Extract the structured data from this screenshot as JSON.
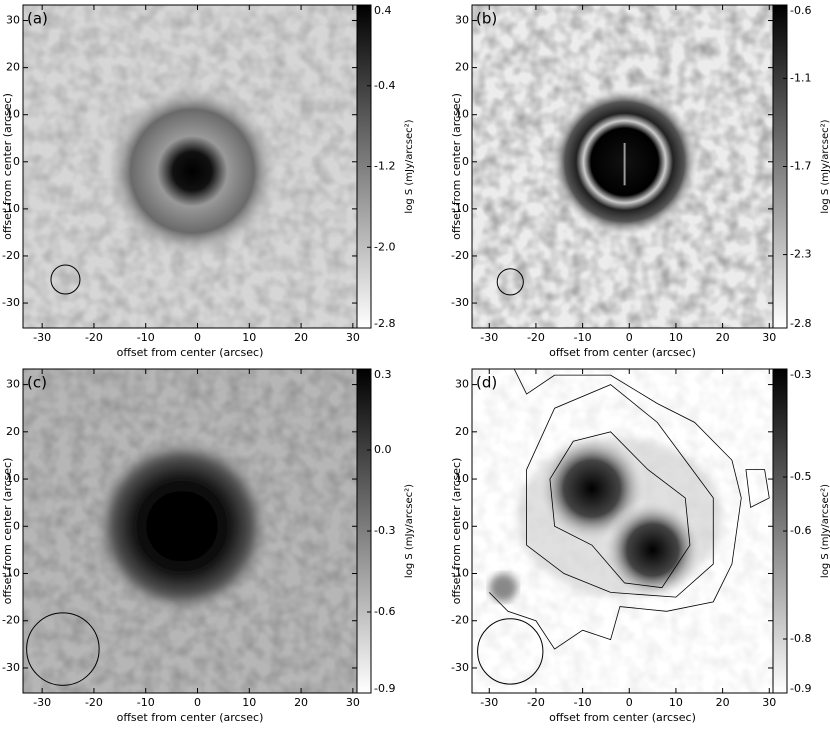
{
  "chart_data": [
    {
      "type": "image",
      "title": "(a)",
      "xlabel": "offset from center (arcsec)",
      "ylabel": "offset from center (arcsec)",
      "xlim": [
        -33.7,
        30.8
      ],
      "ylim": [
        -35.3,
        33.3
      ],
      "xticks": [
        -30,
        -20,
        -10,
        0,
        10,
        20,
        30
      ],
      "yticks": [
        -30,
        -20,
        -10,
        0,
        10,
        20,
        30
      ],
      "colorbar_label": "log S (mJy/arcsec²)",
      "clim": [
        -2.8,
        0.4
      ],
      "cticks": [
        0.4,
        -0.4,
        -1.2,
        {
          "value": -2,
          "label": "-2.0"
        },
        -2.8
      ]
    },
    {
      "type": "image",
      "title": "(b)",
      "xlabel": "offset from center (arcsec)",
      "ylabel": "offset from center (arcsec)",
      "xlim": [
        -33.7,
        30.8
      ],
      "ylim": [
        -35.3,
        33.3
      ],
      "xticks": [
        -30,
        -20,
        -10,
        0,
        10,
        20,
        30
      ],
      "yticks": [
        -30,
        -20,
        -10,
        0,
        10,
        20,
        30
      ],
      "colorbar_label": "log S (mJy/arcsec²)",
      "clim": [
        -2.8,
        -0.6
      ],
      "cticks": [
        -0.6,
        -1.1,
        -1.7,
        -2.3,
        -2.8
      ]
    },
    {
      "type": "image",
      "title": "(c)",
      "xlabel": "offset from center (arcsec)",
      "ylabel": "offset from center (arcsec)",
      "xlim": [
        -33.7,
        30.8
      ],
      "ylim": [
        -35.3,
        33.3
      ],
      "xticks": [
        -30,
        -20,
        -10,
        0,
        10,
        20,
        30
      ],
      "yticks": [
        -30,
        -20,
        -10,
        0,
        10,
        20,
        30
      ],
      "colorbar_label": "log S (mJy/arcsec²)",
      "clim": [
        -0.9,
        0.3
      ],
      "cticks": [
        0.3,
        {
          "value": 0,
          "label": "0.0"
        },
        -0.3,
        -0.6,
        -0.9
      ]
    },
    {
      "type": "image",
      "title": "(d)",
      "xlabel": "offset from center (arcsec)",
      "ylabel": "offset from center (arcsec)",
      "xlim": [
        -33.7,
        30.8
      ],
      "ylim": [
        -35.3,
        33.3
      ],
      "xticks": [
        -30,
        -20,
        -10,
        0,
        10,
        20,
        30
      ],
      "yticks": [
        -30,
        -20,
        -10,
        0,
        10,
        20,
        30
      ],
      "colorbar_label": "log S (mJy/arcsec²)",
      "clim": [
        -0.9,
        -0.3
      ],
      "cticks": [
        -0.3,
        -0.5,
        -0.6,
        -0.8,
        -0.9
      ]
    }
  ]
}
